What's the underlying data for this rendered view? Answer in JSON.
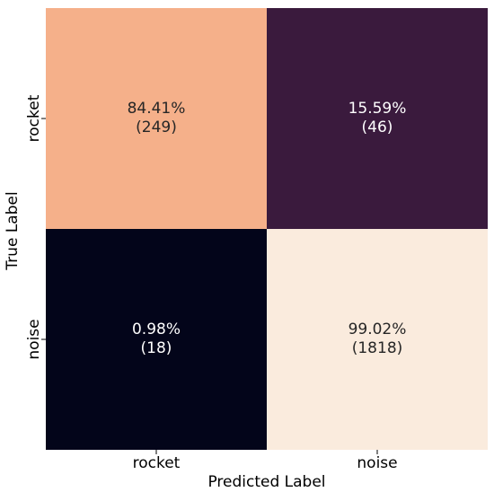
{
  "chart_data": {
    "type": "heatmap",
    "title": "",
    "xlabel": "Predicted Label",
    "ylabel": "True Label",
    "x_categories": [
      "rocket",
      "noise"
    ],
    "y_categories": [
      "rocket",
      "noise"
    ],
    "cells": [
      [
        {
          "percent": 84.41,
          "count": 249,
          "label": "84.41%",
          "count_label": "(249)",
          "color": "#f5b08a",
          "text_color": "#262626"
        },
        {
          "percent": 15.59,
          "count": 46,
          "label": "15.59%",
          "count_label": "(46)",
          "color": "#3a1a3d",
          "text_color": "#ffffff"
        }
      ],
      [
        {
          "percent": 0.98,
          "count": 18,
          "label": "0.98%",
          "count_label": "(18)",
          "color": "#03051a",
          "text_color": "#ffffff"
        },
        {
          "percent": 99.02,
          "count": 1818,
          "label": "99.02%",
          "count_label": "(1818)",
          "color": "#faebdd",
          "text_color": "#262626"
        }
      ]
    ],
    "colorbar": false,
    "grid": false
  }
}
